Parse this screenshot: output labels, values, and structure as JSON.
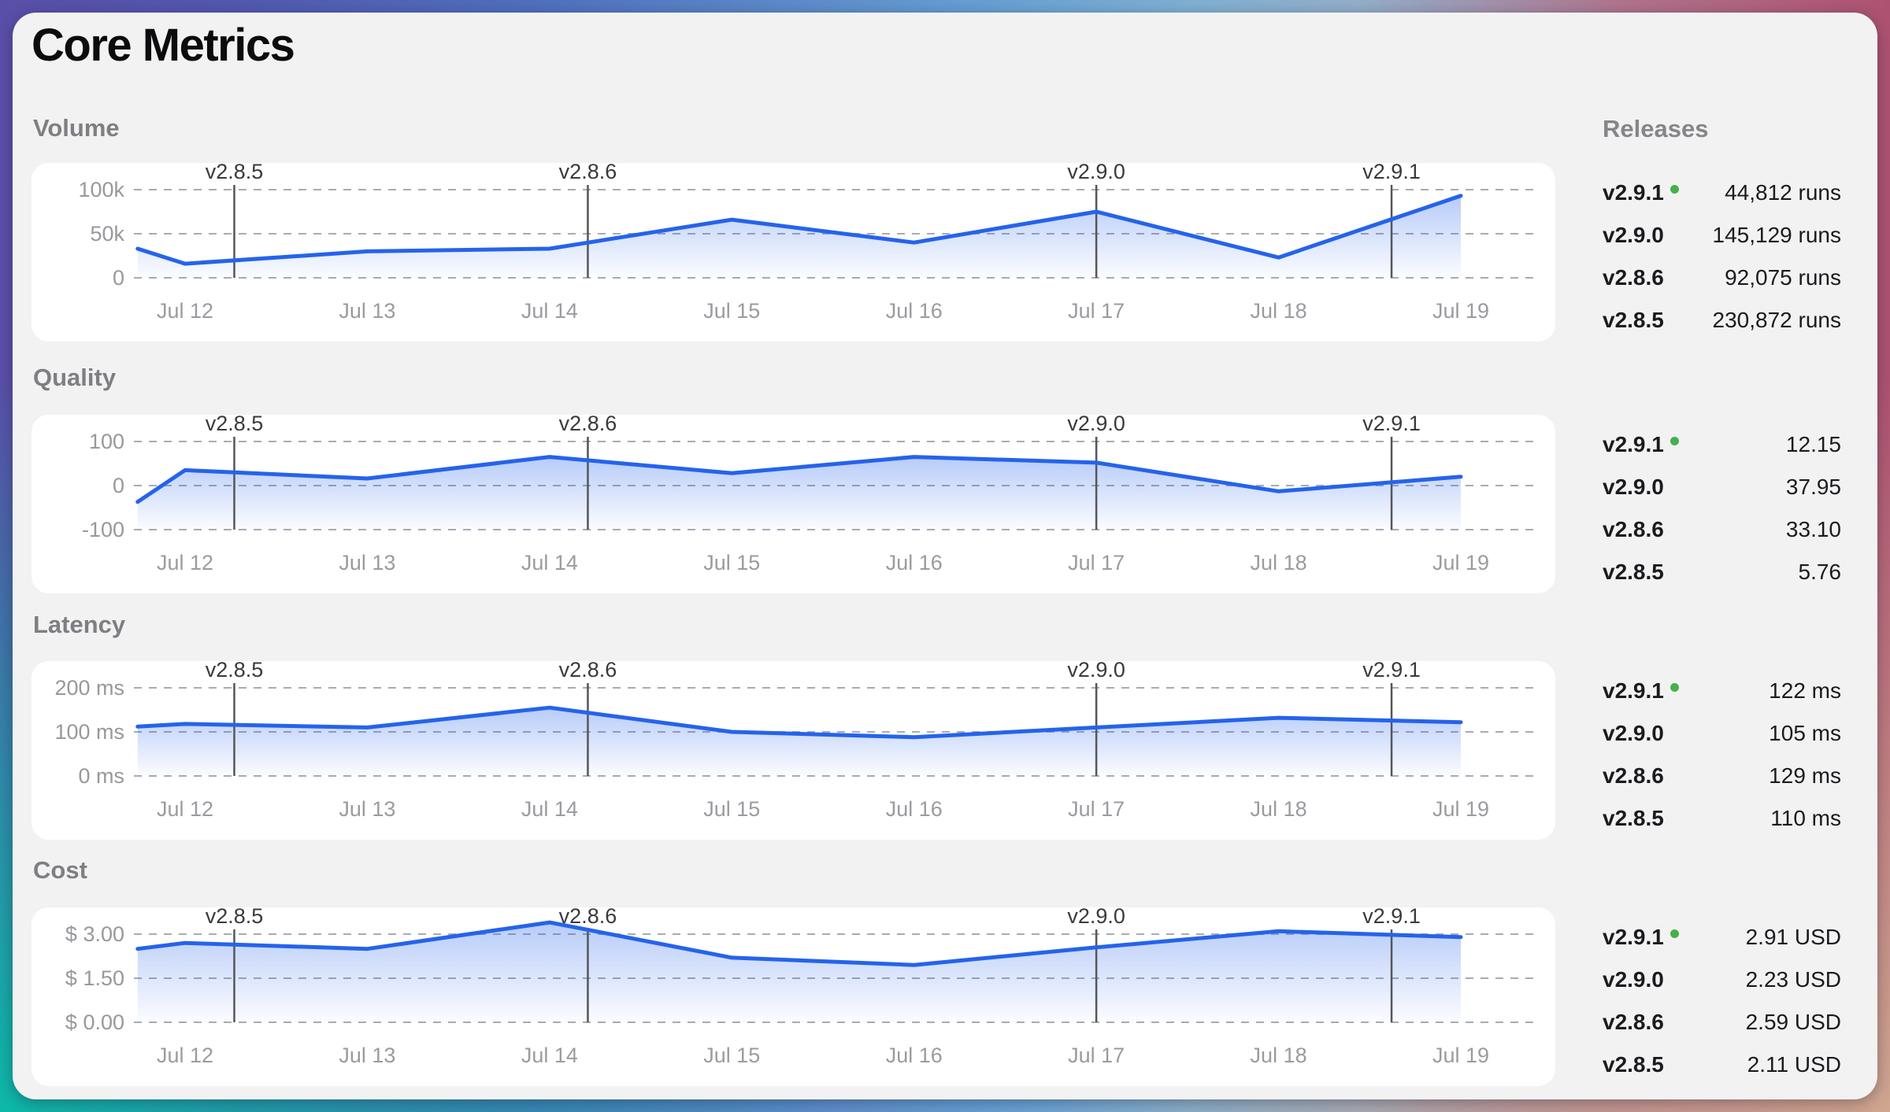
{
  "page": {
    "title": "Core Metrics"
  },
  "releases_panel": {
    "header": "Releases"
  },
  "chart_style": {
    "line_color": "#2563eb",
    "area_color": "#2563eb",
    "grid_color": "#a8abb2",
    "marker_line_color": "#55565a",
    "current_dot_color": "#45b14c"
  },
  "release_markers": [
    {
      "label": "v2.8.5",
      "x_day": 0.27
    },
    {
      "label": "v2.8.6",
      "x_day": 2.21
    },
    {
      "label": "v2.9.0",
      "x_day": 5.0
    },
    {
      "label": "v2.9.1",
      "x_day": 6.62
    }
  ],
  "chart_data": [
    {
      "type": "area",
      "title": "Volume",
      "x_tick_labels": [
        "Jul 12",
        "Jul 13",
        "Jul 14",
        "Jul 15",
        "Jul 16",
        "Jul 17",
        "Jul 18",
        "Jul 19"
      ],
      "x_tick_positions": [
        0,
        1,
        2,
        3,
        4,
        5,
        6,
        7
      ],
      "x_range": [
        -0.26,
        7.01
      ],
      "y_ticks": [
        {
          "label": "100k",
          "value": 100000
        },
        {
          "label": "50k",
          "value": 50000
        },
        {
          "label": "0",
          "value": 0
        }
      ],
      "points": {
        "x": [
          -0.26,
          0,
          1,
          2,
          3,
          4,
          5,
          6,
          7
        ],
        "y": [
          33000,
          16000,
          30000,
          33000,
          66000,
          40000,
          75000,
          23000,
          93000
        ]
      },
      "releases": [
        {
          "version": "v2.9.1",
          "current": true,
          "value": "44,812 runs"
        },
        {
          "version": "v2.9.0",
          "current": false,
          "value": "145,129 runs"
        },
        {
          "version": "v2.8.6",
          "current": false,
          "value": "92,075 runs"
        },
        {
          "version": "v2.8.5",
          "current": false,
          "value": "230,872 runs"
        }
      ]
    },
    {
      "type": "area",
      "title": "Quality",
      "x_tick_labels": [
        "Jul 12",
        "Jul 13",
        "Jul 14",
        "Jul 15",
        "Jul 16",
        "Jul 17",
        "Jul 18",
        "Jul 19"
      ],
      "x_tick_positions": [
        0,
        1,
        2,
        3,
        4,
        5,
        6,
        7
      ],
      "x_range": [
        -0.26,
        7.01
      ],
      "y_ticks": [
        {
          "label": "100",
          "value": 100
        },
        {
          "label": "0",
          "value": 0
        },
        {
          "label": "-100",
          "value": -100
        }
      ],
      "points": {
        "x": [
          -0.26,
          0,
          1,
          2,
          3,
          4,
          5,
          6,
          7
        ],
        "y": [
          -37,
          35,
          16,
          65,
          28,
          65,
          52,
          -13,
          20
        ]
      },
      "releases": [
        {
          "version": "v2.9.1",
          "current": true,
          "value": "12.15"
        },
        {
          "version": "v2.9.0",
          "current": false,
          "value": "37.95"
        },
        {
          "version": "v2.8.6",
          "current": false,
          "value": "33.10"
        },
        {
          "version": "v2.8.5",
          "current": false,
          "value": "5.76"
        }
      ]
    },
    {
      "type": "area",
      "title": "Latency",
      "x_tick_labels": [
        "Jul 12",
        "Jul 13",
        "Jul 14",
        "Jul 15",
        "Jul 16",
        "Jul 17",
        "Jul 18",
        "Jul 19"
      ],
      "x_tick_positions": [
        0,
        1,
        2,
        3,
        4,
        5,
        6,
        7
      ],
      "x_range": [
        -0.26,
        7.01
      ],
      "y_ticks": [
        {
          "label": "200 ms",
          "value": 200
        },
        {
          "label": "100 ms",
          "value": 100
        },
        {
          "label": "0 ms",
          "value": 0
        }
      ],
      "points": {
        "x": [
          -0.26,
          0,
          1,
          2,
          3,
          4,
          5,
          6,
          7
        ],
        "y": [
          112,
          118,
          110,
          155,
          100,
          88,
          110,
          132,
          122
        ]
      },
      "releases": [
        {
          "version": "v2.9.1",
          "current": true,
          "value": "122 ms"
        },
        {
          "version": "v2.9.0",
          "current": false,
          "value": "105 ms"
        },
        {
          "version": "v2.8.6",
          "current": false,
          "value": "129 ms"
        },
        {
          "version": "v2.8.5",
          "current": false,
          "value": "110 ms"
        }
      ]
    },
    {
      "type": "area",
      "title": "Cost",
      "x_tick_labels": [
        "Jul 12",
        "Jul 13",
        "Jul 14",
        "Jul 15",
        "Jul 16",
        "Jul 17",
        "Jul 18",
        "Jul 19"
      ],
      "x_tick_positions": [
        0,
        1,
        2,
        3,
        4,
        5,
        6,
        7
      ],
      "x_range": [
        -0.26,
        7.01
      ],
      "y_ticks": [
        {
          "label": "$ 3.00",
          "value": 3.0
        },
        {
          "label": "$ 1.50",
          "value": 1.5
        },
        {
          "label": "$ 0.00",
          "value": 0.0
        }
      ],
      "points": {
        "x": [
          -0.26,
          0,
          1,
          2,
          3,
          4,
          5,
          6,
          7
        ],
        "y": [
          2.5,
          2.7,
          2.5,
          3.4,
          2.2,
          1.95,
          2.55,
          3.1,
          2.9
        ]
      },
      "releases": [
        {
          "version": "v2.9.1",
          "current": true,
          "value": "2.91 USD"
        },
        {
          "version": "v2.9.0",
          "current": false,
          "value": "2.23 USD"
        },
        {
          "version": "v2.8.6",
          "current": false,
          "value": "2.59 USD"
        },
        {
          "version": "v2.8.5",
          "current": false,
          "value": "2.11 USD"
        }
      ]
    }
  ],
  "layout_tops": {
    "section_labels": [
      129,
      446,
      760,
      1072
    ],
    "panels": [
      191,
      511,
      824,
      1137
    ]
  }
}
